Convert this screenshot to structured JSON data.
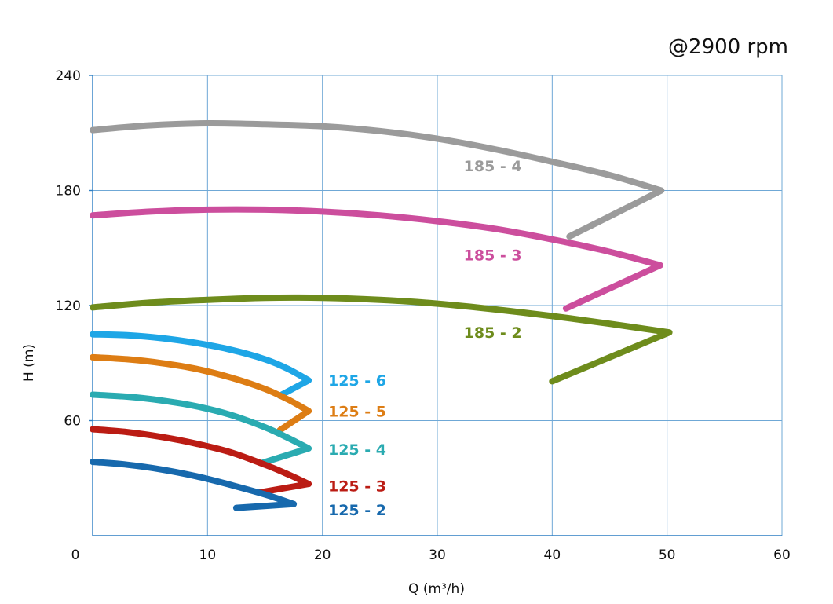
{
  "chart_data": {
    "type": "line",
    "subtitle": "@2900 rpm",
    "xlabel": "Q (m³/h)",
    "ylabel": "H (m)",
    "xlim": [
      0,
      60
    ],
    "ylim": [
      0,
      240
    ],
    "xticks": [
      0,
      10,
      20,
      30,
      40,
      50,
      60
    ],
    "yticks": [
      60,
      120,
      180,
      240
    ],
    "grid": true,
    "series": [
      {
        "name": "185 - 4",
        "color": "#9b9b9b",
        "points": [
          [
            0,
            211.5
          ],
          [
            5,
            214
          ],
          [
            10,
            215
          ],
          [
            15,
            214.5
          ],
          [
            20,
            213.5
          ],
          [
            25,
            211
          ],
          [
            30,
            207
          ],
          [
            35,
            201.5
          ],
          [
            40,
            195
          ],
          [
            45,
            188
          ],
          [
            49.5,
            180
          ],
          [
            41.5,
            156
          ]
        ]
      },
      {
        "name": "185 - 3",
        "color": "#cc4e9d",
        "points": [
          [
            0,
            167
          ],
          [
            5,
            169
          ],
          [
            10,
            170
          ],
          [
            15,
            170
          ],
          [
            20,
            169
          ],
          [
            25,
            167
          ],
          [
            30,
            164
          ],
          [
            35,
            160
          ],
          [
            40,
            154.5
          ],
          [
            45,
            148
          ],
          [
            49.4,
            141
          ],
          [
            41.2,
            118.5
          ]
        ]
      },
      {
        "name": "185 - 2",
        "color": "#6e8c1c",
        "points": [
          [
            0,
            119
          ],
          [
            5,
            121.5
          ],
          [
            10,
            123
          ],
          [
            15,
            124
          ],
          [
            20,
            124
          ],
          [
            25,
            123
          ],
          [
            30,
            121
          ],
          [
            35,
            118
          ],
          [
            40,
            114.5
          ],
          [
            45,
            110.5
          ],
          [
            50.2,
            106
          ],
          [
            40,
            80.5
          ]
        ]
      },
      {
        "name": "125 - 6",
        "color": "#1ea6e6",
        "points": [
          [
            0,
            105
          ],
          [
            3,
            104.5
          ],
          [
            6,
            103
          ],
          [
            9,
            100.5
          ],
          [
            12,
            97
          ],
          [
            15,
            92
          ],
          [
            17,
            87
          ],
          [
            18.8,
            81
          ],
          [
            16.3,
            73
          ]
        ]
      },
      {
        "name": "125 - 5",
        "color": "#dd7d14",
        "points": [
          [
            0,
            93
          ],
          [
            3,
            92
          ],
          [
            6,
            90
          ],
          [
            9,
            87
          ],
          [
            12,
            82.5
          ],
          [
            15,
            76.5
          ],
          [
            17,
            71
          ],
          [
            18.8,
            65
          ],
          [
            16.3,
            55
          ]
        ]
      },
      {
        "name": "125 - 4",
        "color": "#2aabb1",
        "points": [
          [
            0,
            73.5
          ],
          [
            3,
            72.5
          ],
          [
            6,
            70.5
          ],
          [
            9,
            67.5
          ],
          [
            12,
            63
          ],
          [
            15,
            56.5
          ],
          [
            17,
            51
          ],
          [
            18.8,
            45.5
          ],
          [
            14.8,
            38
          ]
        ]
      },
      {
        "name": "125 - 3",
        "color": "#bb1c14",
        "points": [
          [
            0,
            55.5
          ],
          [
            3,
            54
          ],
          [
            6,
            51.5
          ],
          [
            9,
            48
          ],
          [
            12,
            43.5
          ],
          [
            15,
            37
          ],
          [
            17,
            32
          ],
          [
            18.8,
            27
          ],
          [
            14.5,
            22.5
          ]
        ]
      },
      {
        "name": "125 - 2",
        "color": "#1769ad",
        "points": [
          [
            0,
            38.5
          ],
          [
            3,
            37
          ],
          [
            6,
            34.5
          ],
          [
            9,
            31
          ],
          [
            12,
            26.5
          ],
          [
            15,
            21.5
          ],
          [
            17.5,
            16.5
          ],
          [
            12.5,
            14.5
          ]
        ]
      }
    ],
    "labels": [
      {
        "text": "185 - 4",
        "x": 32.3,
        "y": 193,
        "color": "#9b9b9b"
      },
      {
        "text": "185 - 3",
        "x": 32.3,
        "y": 146.5,
        "color": "#cc4e9d"
      },
      {
        "text": "185 - 2",
        "x": 32.3,
        "y": 106,
        "color": "#6e8c1c"
      },
      {
        "text": "125 - 6",
        "x": 20.5,
        "y": 81,
        "color": "#1ea6e6"
      },
      {
        "text": "125 - 5",
        "x": 20.5,
        "y": 65,
        "color": "#dd7d14"
      },
      {
        "text": "125 - 4",
        "x": 20.5,
        "y": 45,
        "color": "#2aabb1"
      },
      {
        "text": "125 - 3",
        "x": 20.5,
        "y": 26,
        "color": "#bb1c14"
      },
      {
        "text": "125 - 2",
        "x": 20.5,
        "y": 13.5,
        "color": "#1769ad"
      }
    ]
  }
}
